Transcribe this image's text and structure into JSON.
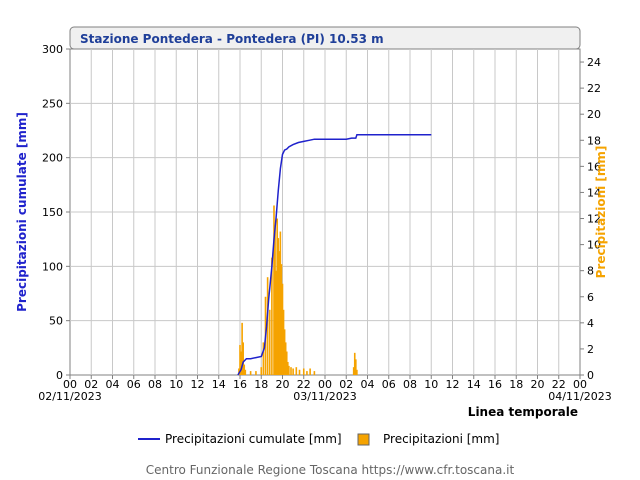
{
  "chart_data": {
    "type": "bar+line",
    "title": "Stazione Pontedera - Pontedera (PI) 10.53 m",
    "xlabel": "Linea temporale",
    "ylabel_left": "Precipitazioni cumulate [mm]",
    "ylabel_right": "Precipitazioni [mm]",
    "ylim_left": [
      0,
      300
    ],
    "ylim_right": [
      0,
      25
    ],
    "yticks_left": [
      0,
      50,
      100,
      150,
      200,
      250,
      300
    ],
    "yticks_right": [
      0,
      2,
      4,
      6,
      8,
      10,
      12,
      14,
      16,
      18,
      20,
      22,
      24
    ],
    "xlim_hours": [
      0,
      48
    ],
    "xtick_labels": [
      "00",
      "02",
      "04",
      "06",
      "08",
      "10",
      "12",
      "14",
      "16",
      "18",
      "20",
      "22",
      "00",
      "02",
      "04",
      "06",
      "08",
      "10",
      "12",
      "14",
      "16",
      "18",
      "20",
      "22",
      "00"
    ],
    "date_labels": [
      {
        "hour": 0,
        "text": "02/11/2023"
      },
      {
        "hour": 24,
        "text": "03/11/2023"
      },
      {
        "hour": 48,
        "text": "04/11/2023"
      }
    ],
    "grid": true,
    "legend_position": "bottom",
    "series": [
      {
        "name": "Precipitazioni cumulate [mm]",
        "type": "line",
        "axis": "left",
        "color": "#1f22cc",
        "x": [
          15.8,
          16.1,
          16.3,
          16.6,
          17.0,
          17.5,
          18.0,
          18.3,
          18.5,
          18.7,
          19.0,
          19.2,
          19.4,
          19.6,
          19.8,
          20.0,
          20.2,
          20.4,
          20.6,
          21.0,
          21.5,
          22.0,
          22.5,
          23.0,
          23.5,
          24.0,
          25.0,
          26.0,
          26.5,
          26.9,
          27.0,
          27.5,
          30.0,
          33.0,
          34.0
        ],
        "y": [
          0,
          5,
          12,
          15,
          15,
          16,
          17,
          25,
          45,
          70,
          100,
          125,
          145,
          170,
          190,
          203,
          207,
          208,
          210,
          212,
          214,
          215,
          216,
          217,
          217,
          217,
          217,
          217,
          218,
          218,
          221,
          221,
          221,
          221,
          221
        ]
      },
      {
        "name": "Precipitazioni [mm]",
        "type": "bar",
        "axis": "right",
        "color": "#f5a300",
        "x": [
          15.9,
          16.0,
          16.1,
          16.2,
          16.3,
          16.4,
          16.5,
          17.0,
          17.5,
          18.0,
          18.2,
          18.4,
          18.6,
          18.8,
          19.0,
          19.2,
          19.3,
          19.4,
          19.5,
          19.6,
          19.7,
          19.8,
          19.9,
          20.0,
          20.1,
          20.2,
          20.3,
          20.4,
          20.5,
          20.6,
          20.8,
          21.0,
          21.3,
          21.6,
          22.0,
          22.3,
          22.6,
          23.0,
          26.7,
          26.8,
          26.9,
          27.0
        ],
        "y": [
          0.5,
          2.3,
          1.8,
          4.0,
          2.5,
          0.8,
          0.4,
          0.3,
          0.3,
          0.6,
          2.5,
          6.0,
          7.5,
          5.0,
          9.0,
          13.0,
          11.5,
          8.0,
          12.0,
          10.5,
          9.5,
          11.0,
          8.5,
          7.0,
          5.0,
          3.5,
          2.5,
          1.8,
          1.0,
          0.7,
          0.6,
          0.5,
          0.6,
          0.4,
          0.5,
          0.3,
          0.5,
          0.3,
          0.6,
          1.7,
          1.2,
          0.4
        ]
      }
    ]
  },
  "footer": "Centro Funzionale Regione Toscana https://www.cfr.toscana.it"
}
